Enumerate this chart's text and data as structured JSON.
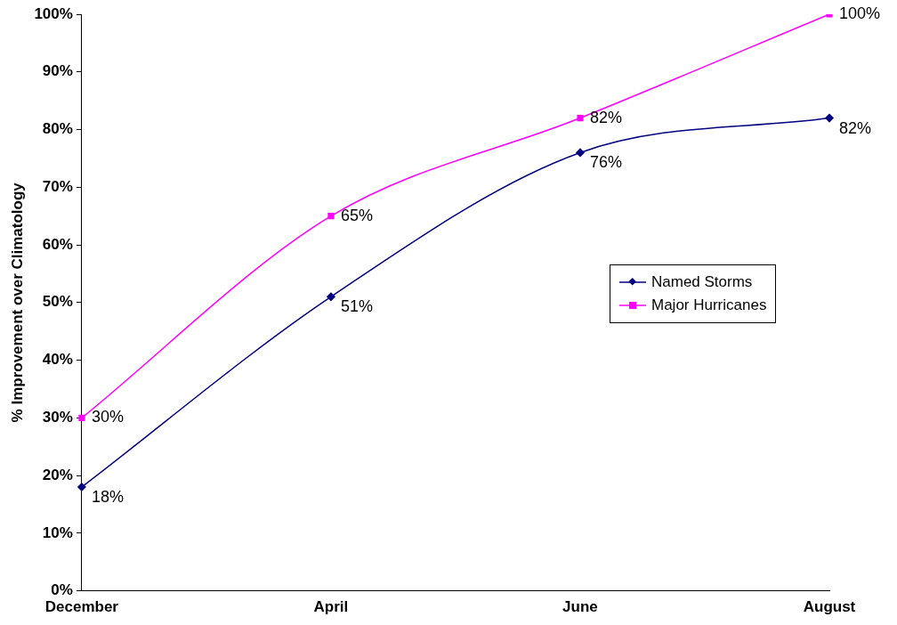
{
  "chart_data": {
    "type": "line",
    "ylabel": "% Improvement over Climatology",
    "categories": [
      "December",
      "April",
      "June",
      "August"
    ],
    "series": [
      {
        "name": "Named Storms",
        "color": "#000080",
        "marker": "diamond",
        "values": [
          18,
          51,
          76,
          82
        ],
        "value_labels": [
          "18%",
          "51%",
          "76%",
          "82%"
        ]
      },
      {
        "name": "Major Hurricanes",
        "color": "#ff00ff",
        "marker": "square",
        "values": [
          30,
          65,
          82,
          100
        ],
        "value_labels": [
          "30%",
          "65%",
          "82%",
          "100%"
        ]
      }
    ],
    "ylim": [
      0,
      100
    ],
    "yticks": [
      {
        "value": 0,
        "label": "0%"
      },
      {
        "value": 10,
        "label": "10%"
      },
      {
        "value": 20,
        "label": "20%"
      },
      {
        "value": 30,
        "label": "30%"
      },
      {
        "value": 40,
        "label": "40%"
      },
      {
        "value": 50,
        "label": "50%"
      },
      {
        "value": 60,
        "label": "60%"
      },
      {
        "value": 70,
        "label": "70%"
      },
      {
        "value": 80,
        "label": "80%"
      },
      {
        "value": 90,
        "label": "90%"
      },
      {
        "value": 100,
        "label": "100%"
      }
    ],
    "grid": false,
    "legend": "right"
  }
}
